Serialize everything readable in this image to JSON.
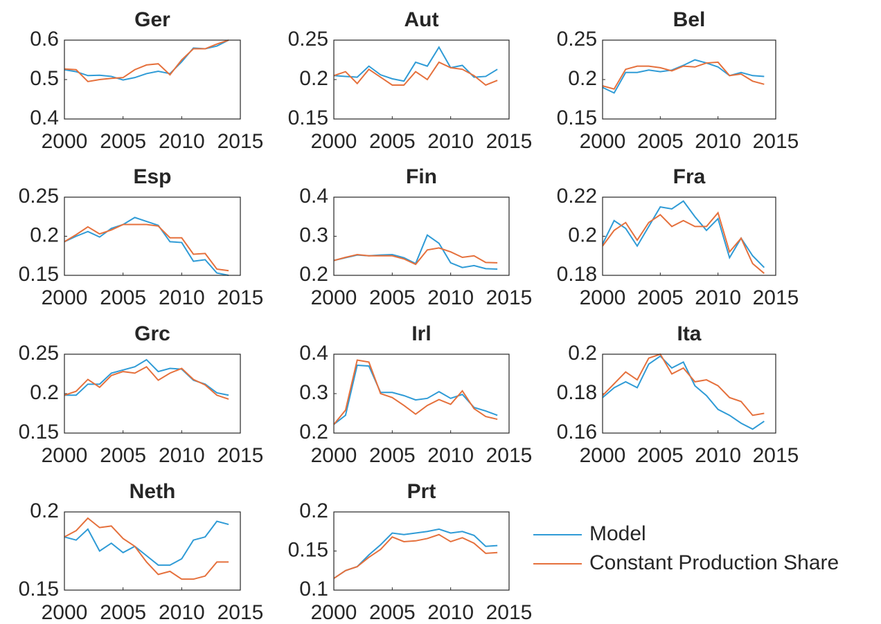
{
  "chart_data": [
    {
      "type": "line",
      "title": "Ger",
      "x": [
        2000,
        2001,
        2002,
        2003,
        2004,
        2005,
        2006,
        2007,
        2008,
        2009,
        2010,
        2011,
        2012,
        2013,
        2014
      ],
      "xlim": [
        2000,
        2015
      ],
      "xticks": [
        2000,
        2005,
        2010,
        2015
      ],
      "ylim": [
        0.4,
        0.6
      ],
      "yticks": [
        0.4,
        0.5,
        0.6
      ],
      "series": [
        {
          "name": "Model",
          "color": "#2f9bd6",
          "values": [
            0.525,
            0.52,
            0.51,
            0.511,
            0.508,
            0.499,
            0.505,
            0.515,
            0.521,
            0.515,
            0.545,
            0.58,
            0.578,
            0.585,
            0.6
          ]
        },
        {
          "name": "Constant Production Share",
          "color": "#e5703c",
          "values": [
            0.527,
            0.525,
            0.495,
            0.5,
            0.503,
            0.505,
            0.525,
            0.537,
            0.54,
            0.512,
            0.55,
            0.578,
            0.578,
            0.59,
            0.6
          ]
        }
      ]
    },
    {
      "type": "line",
      "title": "Aut",
      "x": [
        2000,
        2001,
        2002,
        2003,
        2004,
        2005,
        2006,
        2007,
        2008,
        2009,
        2010,
        2011,
        2012,
        2013,
        2014
      ],
      "xlim": [
        2000,
        2015
      ],
      "xticks": [
        2000,
        2005,
        2010,
        2015
      ],
      "ylim": [
        0.15,
        0.25
      ],
      "yticks": [
        0.15,
        0.2,
        0.25
      ],
      "series": [
        {
          "name": "Model",
          "color": "#2f9bd6",
          "values": [
            0.205,
            0.204,
            0.203,
            0.217,
            0.206,
            0.201,
            0.198,
            0.222,
            0.217,
            0.241,
            0.215,
            0.218,
            0.203,
            0.204,
            0.213
          ]
        },
        {
          "name": "Constant Production Share",
          "color": "#e5703c",
          "values": [
            0.205,
            0.21,
            0.195,
            0.213,
            0.203,
            0.193,
            0.193,
            0.21,
            0.2,
            0.222,
            0.215,
            0.213,
            0.205,
            0.193,
            0.199
          ]
        }
      ]
    },
    {
      "type": "line",
      "title": "Bel",
      "x": [
        2000,
        2001,
        2002,
        2003,
        2004,
        2005,
        2006,
        2007,
        2008,
        2009,
        2010,
        2011,
        2012,
        2013,
        2014
      ],
      "xlim": [
        2000,
        2015
      ],
      "xticks": [
        2000,
        2005,
        2010,
        2015
      ],
      "ylim": [
        0.15,
        0.25
      ],
      "yticks": [
        0.15,
        0.2,
        0.25
      ],
      "series": [
        {
          "name": "Model",
          "color": "#2f9bd6",
          "values": [
            0.19,
            0.183,
            0.209,
            0.209,
            0.212,
            0.21,
            0.212,
            0.218,
            0.225,
            0.221,
            0.216,
            0.205,
            0.209,
            0.205,
            0.204
          ]
        },
        {
          "name": "Constant Production Share",
          "color": "#e5703c",
          "values": [
            0.192,
            0.188,
            0.213,
            0.217,
            0.217,
            0.215,
            0.211,
            0.217,
            0.216,
            0.221,
            0.222,
            0.205,
            0.207,
            0.198,
            0.194
          ]
        }
      ]
    },
    {
      "type": "line",
      "title": "Esp",
      "x": [
        2000,
        2001,
        2002,
        2003,
        2004,
        2005,
        2006,
        2007,
        2008,
        2009,
        2010,
        2011,
        2012,
        2013,
        2014
      ],
      "xlim": [
        2000,
        2015
      ],
      "xticks": [
        2000,
        2005,
        2010,
        2015
      ],
      "ylim": [
        0.15,
        0.25
      ],
      "yticks": [
        0.15,
        0.2,
        0.25
      ],
      "series": [
        {
          "name": "Model",
          "color": "#2f9bd6",
          "values": [
            0.193,
            0.2,
            0.206,
            0.199,
            0.21,
            0.215,
            0.224,
            0.219,
            0.214,
            0.193,
            0.192,
            0.168,
            0.17,
            0.153,
            0.15
          ]
        },
        {
          "name": "Constant Production Share",
          "color": "#e5703c",
          "values": [
            0.193,
            0.202,
            0.212,
            0.203,
            0.208,
            0.215,
            0.215,
            0.215,
            0.213,
            0.198,
            0.198,
            0.177,
            0.178,
            0.158,
            0.156
          ]
        }
      ]
    },
    {
      "type": "line",
      "title": "Fin",
      "x": [
        2000,
        2001,
        2002,
        2003,
        2004,
        2005,
        2006,
        2007,
        2008,
        2009,
        2010,
        2011,
        2012,
        2013,
        2014
      ],
      "xlim": [
        2000,
        2015
      ],
      "xticks": [
        2000,
        2005,
        2010,
        2015
      ],
      "ylim": [
        0.2,
        0.4
      ],
      "yticks": [
        0.2,
        0.3,
        0.4
      ],
      "series": [
        {
          "name": "Model",
          "color": "#2f9bd6",
          "values": [
            0.238,
            0.245,
            0.252,
            0.25,
            0.252,
            0.253,
            0.245,
            0.23,
            0.303,
            0.282,
            0.232,
            0.22,
            0.225,
            0.217,
            0.216
          ]
        },
        {
          "name": "Constant Production Share",
          "color": "#e5703c",
          "values": [
            0.238,
            0.246,
            0.253,
            0.25,
            0.25,
            0.25,
            0.242,
            0.228,
            0.265,
            0.27,
            0.26,
            0.246,
            0.25,
            0.233,
            0.232
          ]
        }
      ]
    },
    {
      "type": "line",
      "title": "Fra",
      "x": [
        2000,
        2001,
        2002,
        2003,
        2004,
        2005,
        2006,
        2007,
        2008,
        2009,
        2010,
        2011,
        2012,
        2013,
        2014
      ],
      "xlim": [
        2000,
        2015
      ],
      "xticks": [
        2000,
        2005,
        2010,
        2015
      ],
      "ylim": [
        0.18,
        0.22
      ],
      "yticks": [
        0.18,
        0.2,
        0.22
      ],
      "series": [
        {
          "name": "Model",
          "color": "#2f9bd6",
          "values": [
            0.196,
            0.208,
            0.204,
            0.195,
            0.205,
            0.215,
            0.214,
            0.218,
            0.21,
            0.203,
            0.209,
            0.189,
            0.199,
            0.19,
            0.184
          ]
        },
        {
          "name": "Constant Production Share",
          "color": "#e5703c",
          "values": [
            0.195,
            0.203,
            0.207,
            0.198,
            0.207,
            0.211,
            0.205,
            0.208,
            0.205,
            0.205,
            0.212,
            0.192,
            0.199,
            0.186,
            0.181
          ]
        }
      ]
    },
    {
      "type": "line",
      "title": "Grc",
      "x": [
        2000,
        2001,
        2002,
        2003,
        2004,
        2005,
        2006,
        2007,
        2008,
        2009,
        2010,
        2011,
        2012,
        2013,
        2014
      ],
      "xlim": [
        2000,
        2015
      ],
      "xticks": [
        2000,
        2005,
        2010,
        2015
      ],
      "ylim": [
        0.15,
        0.25
      ],
      "yticks": [
        0.15,
        0.2,
        0.25
      ],
      "series": [
        {
          "name": "Model",
          "color": "#2f9bd6",
          "values": [
            0.198,
            0.198,
            0.212,
            0.212,
            0.226,
            0.23,
            0.234,
            0.243,
            0.228,
            0.232,
            0.231,
            0.217,
            0.212,
            0.201,
            0.198
          ]
        },
        {
          "name": "Constant Production Share",
          "color": "#e5703c",
          "values": [
            0.198,
            0.203,
            0.218,
            0.208,
            0.223,
            0.228,
            0.226,
            0.234,
            0.217,
            0.226,
            0.232,
            0.218,
            0.211,
            0.198,
            0.193
          ]
        }
      ]
    },
    {
      "type": "line",
      "title": "Irl",
      "x": [
        2000,
        2001,
        2002,
        2003,
        2004,
        2005,
        2006,
        2007,
        2008,
        2009,
        2010,
        2011,
        2012,
        2013,
        2014
      ],
      "xlim": [
        2000,
        2015
      ],
      "xticks": [
        2000,
        2005,
        2010,
        2015
      ],
      "ylim": [
        0.2,
        0.4
      ],
      "yticks": [
        0.2,
        0.3,
        0.4
      ],
      "series": [
        {
          "name": "Model",
          "color": "#2f9bd6",
          "values": [
            0.222,
            0.245,
            0.372,
            0.37,
            0.303,
            0.303,
            0.295,
            0.284,
            0.288,
            0.305,
            0.288,
            0.298,
            0.265,
            0.256,
            0.245
          ]
        },
        {
          "name": "Constant Production Share",
          "color": "#e5703c",
          "values": [
            0.222,
            0.258,
            0.385,
            0.38,
            0.3,
            0.29,
            0.27,
            0.248,
            0.27,
            0.285,
            0.273,
            0.307,
            0.262,
            0.242,
            0.235
          ]
        }
      ]
    },
    {
      "type": "line",
      "title": "Ita",
      "x": [
        2000,
        2001,
        2002,
        2003,
        2004,
        2005,
        2006,
        2007,
        2008,
        2009,
        2010,
        2011,
        2012,
        2013,
        2014
      ],
      "xlim": [
        2000,
        2015
      ],
      "xticks": [
        2000,
        2005,
        2010,
        2015
      ],
      "ylim": [
        0.16,
        0.2
      ],
      "yticks": [
        0.16,
        0.18,
        0.2
      ],
      "series": [
        {
          "name": "Model",
          "color": "#2f9bd6",
          "values": [
            0.178,
            0.183,
            0.186,
            0.183,
            0.195,
            0.199,
            0.193,
            0.196,
            0.184,
            0.179,
            0.172,
            0.169,
            0.165,
            0.162,
            0.166
          ]
        },
        {
          "name": "Constant Production Share",
          "color": "#e5703c",
          "values": [
            0.179,
            0.185,
            0.191,
            0.187,
            0.198,
            0.2,
            0.19,
            0.193,
            0.186,
            0.187,
            0.184,
            0.178,
            0.176,
            0.169,
            0.17
          ]
        }
      ]
    },
    {
      "type": "line",
      "title": "Neth",
      "x": [
        2000,
        2001,
        2002,
        2003,
        2004,
        2005,
        2006,
        2007,
        2008,
        2009,
        2010,
        2011,
        2012,
        2013,
        2014
      ],
      "xlim": [
        2000,
        2015
      ],
      "xticks": [
        2000,
        2005,
        2010,
        2015
      ],
      "ylim": [
        0.15,
        0.2
      ],
      "yticks": [
        0.15,
        0.2
      ],
      "series": [
        {
          "name": "Model",
          "color": "#2f9bd6",
          "values": [
            0.184,
            0.182,
            0.189,
            0.175,
            0.18,
            0.174,
            0.178,
            0.172,
            0.166,
            0.166,
            0.17,
            0.182,
            0.184,
            0.194,
            0.192
          ]
        },
        {
          "name": "Constant Production Share",
          "color": "#e5703c",
          "values": [
            0.184,
            0.188,
            0.196,
            0.19,
            0.191,
            0.183,
            0.178,
            0.168,
            0.16,
            0.162,
            0.157,
            0.157,
            0.159,
            0.168,
            0.168
          ]
        }
      ]
    },
    {
      "type": "line",
      "title": "Prt",
      "x": [
        2000,
        2001,
        2002,
        2003,
        2004,
        2005,
        2006,
        2007,
        2008,
        2009,
        2010,
        2011,
        2012,
        2013,
        2014
      ],
      "xlim": [
        2000,
        2015
      ],
      "xticks": [
        2000,
        2005,
        2010,
        2015
      ],
      "ylim": [
        0.1,
        0.2
      ],
      "yticks": [
        0.1,
        0.15,
        0.2
      ],
      "legend": "right",
      "series": [
        {
          "name": "Model",
          "color": "#2f9bd6",
          "values": [
            0.115,
            0.125,
            0.13,
            0.145,
            0.158,
            0.173,
            0.171,
            0.173,
            0.175,
            0.178,
            0.173,
            0.175,
            0.17,
            0.156,
            0.157
          ]
        },
        {
          "name": "Constant Production Share",
          "color": "#e5703c",
          "values": [
            0.115,
            0.125,
            0.13,
            0.142,
            0.152,
            0.168,
            0.162,
            0.163,
            0.166,
            0.171,
            0.162,
            0.167,
            0.16,
            0.147,
            0.148
          ]
        }
      ]
    }
  ]
}
